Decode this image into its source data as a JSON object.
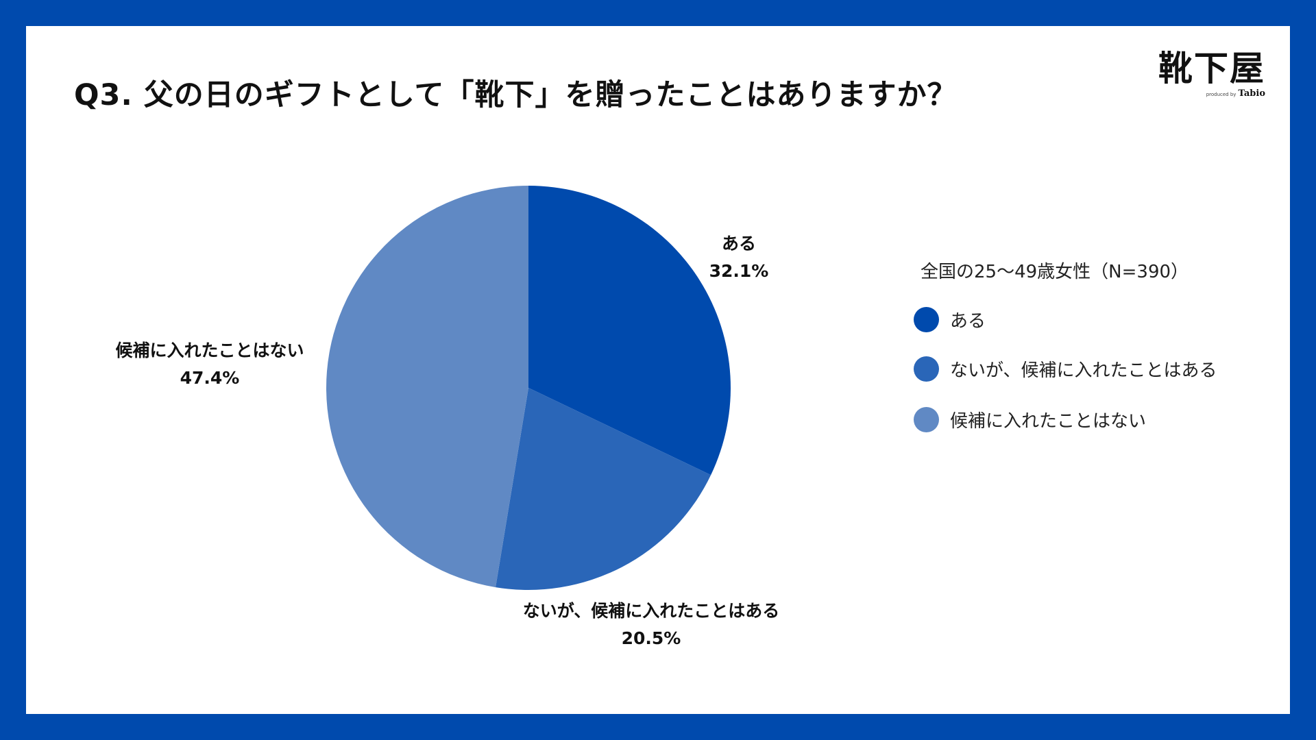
{
  "title": "Q3. 父の日のギフトとして「靴下」を贈ったことはありますか？",
  "logo": {
    "main": "靴下屋",
    "sub": "produced by",
    "brand": "Tabio"
  },
  "chart_data": {
    "type": "pie",
    "title": "Q3. 父の日のギフトとして「靴下」を贈ったことはありますか？",
    "legend_title": "全国の25～49歳女性（N=390）",
    "legend_position": "right",
    "slices": [
      {
        "label": "ある",
        "value": 32.1,
        "display": "32.1%",
        "color": "#004aad"
      },
      {
        "label": "ないが、候補に入れたことはある",
        "value": 20.5,
        "display": "20.5%",
        "color": "#2a66b8"
      },
      {
        "label": "候補に入れたことはない",
        "value": 47.4,
        "display": "47.4%",
        "color": "#6089c4"
      }
    ]
  }
}
